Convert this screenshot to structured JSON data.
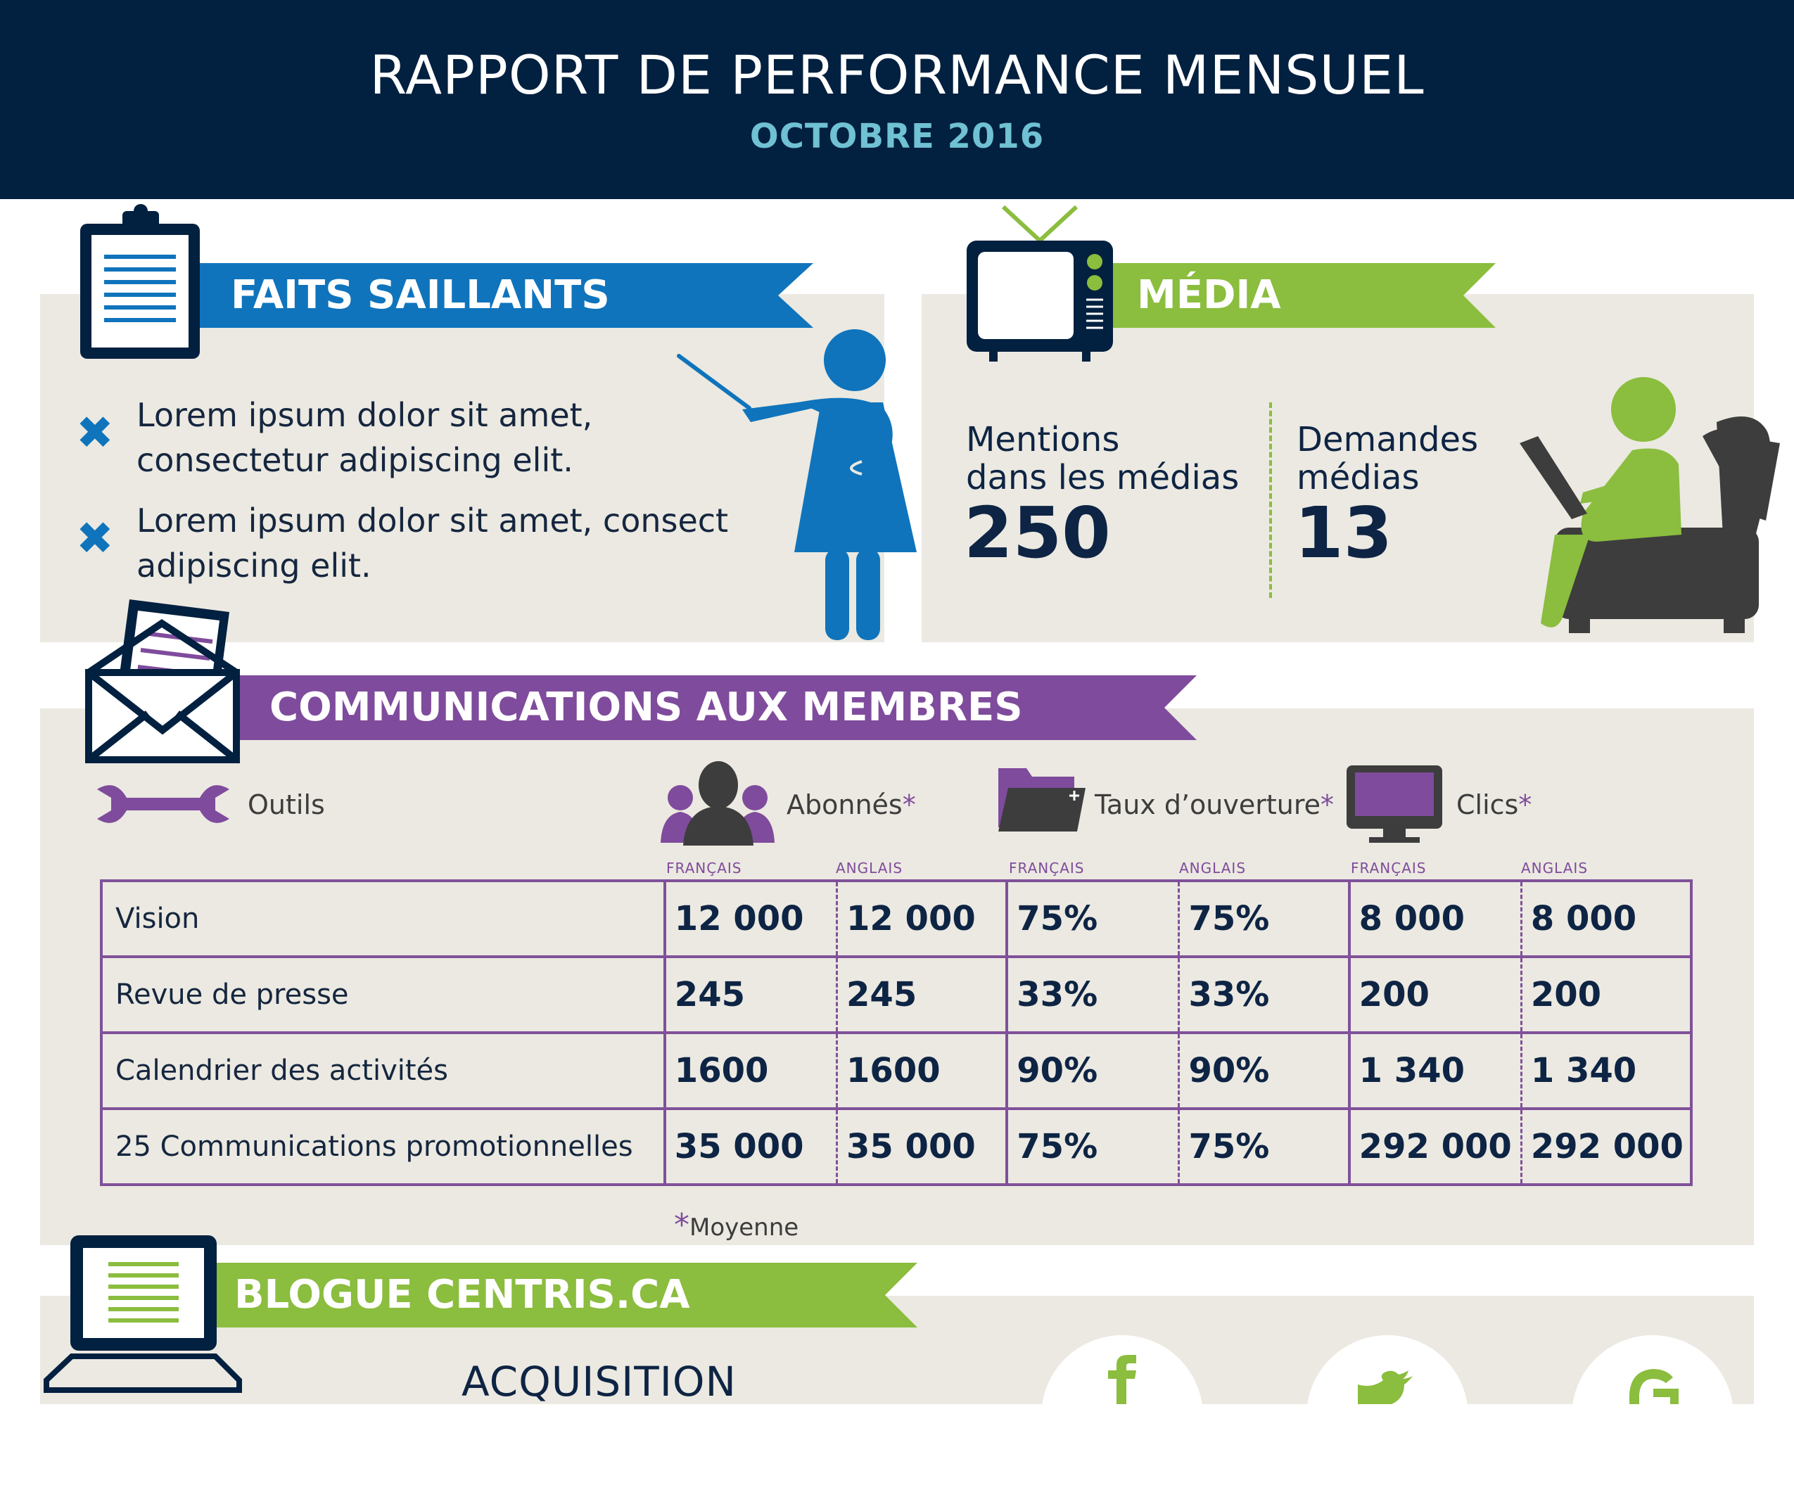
{
  "header": {
    "title": "RAPPORT DE PERFORMANCE MENSUEL",
    "subtitle": "OCTOBRE 2016"
  },
  "colors": {
    "navy": "#02203f",
    "blue": "#0f74bc",
    "green": "#8bbd3e",
    "purple": "#7f4b9c",
    "panel": "#ebe9e1",
    "cyan": "#6fc1d3",
    "charcoal": "#3d3d3d"
  },
  "faits": {
    "title": "FAITS SAILLANTS",
    "bullets": [
      {
        "line1": "Lorem ipsum dolor sit amet,",
        "line2": "consectetur adipiscing elit."
      },
      {
        "line1": "Lorem ipsum dolor sit amet, consect",
        "line2": "adipiscing elit."
      }
    ]
  },
  "media": {
    "title": "MÉDIA",
    "mentions": {
      "line1": "Mentions",
      "line2": "dans les médias",
      "value": "250"
    },
    "demandes": {
      "line1": "Demandes",
      "line2": "médias",
      "value": "13"
    }
  },
  "communications": {
    "title": "COMMUNICATIONS AUX MEMBRES",
    "legend": {
      "outils": "Outils",
      "abonnes": "Abonnés",
      "taux": "Taux d’ouverture",
      "clics": "Clics",
      "star": "*"
    },
    "lang": {
      "fr": "FRANÇAIS",
      "en": "ANGLAIS"
    },
    "rows": [
      {
        "label": "Vision",
        "abonnes_fr": "12 000",
        "abonnes_en": "12 000",
        "taux_fr": "75%",
        "taux_en": "75%",
        "clics_fr": "8 000",
        "clics_en": "8 000"
      },
      {
        "label": "Revue de presse",
        "abonnes_fr": "245",
        "abonnes_en": "245",
        "taux_fr": "33%",
        "taux_en": "33%",
        "clics_fr": "200",
        "clics_en": "200"
      },
      {
        "label": "Calendrier des activités",
        "abonnes_fr": "1600",
        "abonnes_en": "1600",
        "taux_fr": "90%",
        "taux_en": "90%",
        "clics_fr": "1 340",
        "clics_en": "1 340"
      },
      {
        "label": "25 Communications promotionnelles",
        "abonnes_fr": "35 000",
        "abonnes_en": "35 000",
        "taux_fr": "75%",
        "taux_en": "75%",
        "clics_fr": "292 000",
        "clics_en": "292 000"
      }
    ],
    "footnote": "Moyenne"
  },
  "blogue": {
    "title": "BLOGUE CENTRIS.CA",
    "acquisition": "ACQUISITION"
  },
  "social": {
    "icons": [
      "facebook-icon",
      "twitter-icon",
      "google-icon"
    ]
  }
}
